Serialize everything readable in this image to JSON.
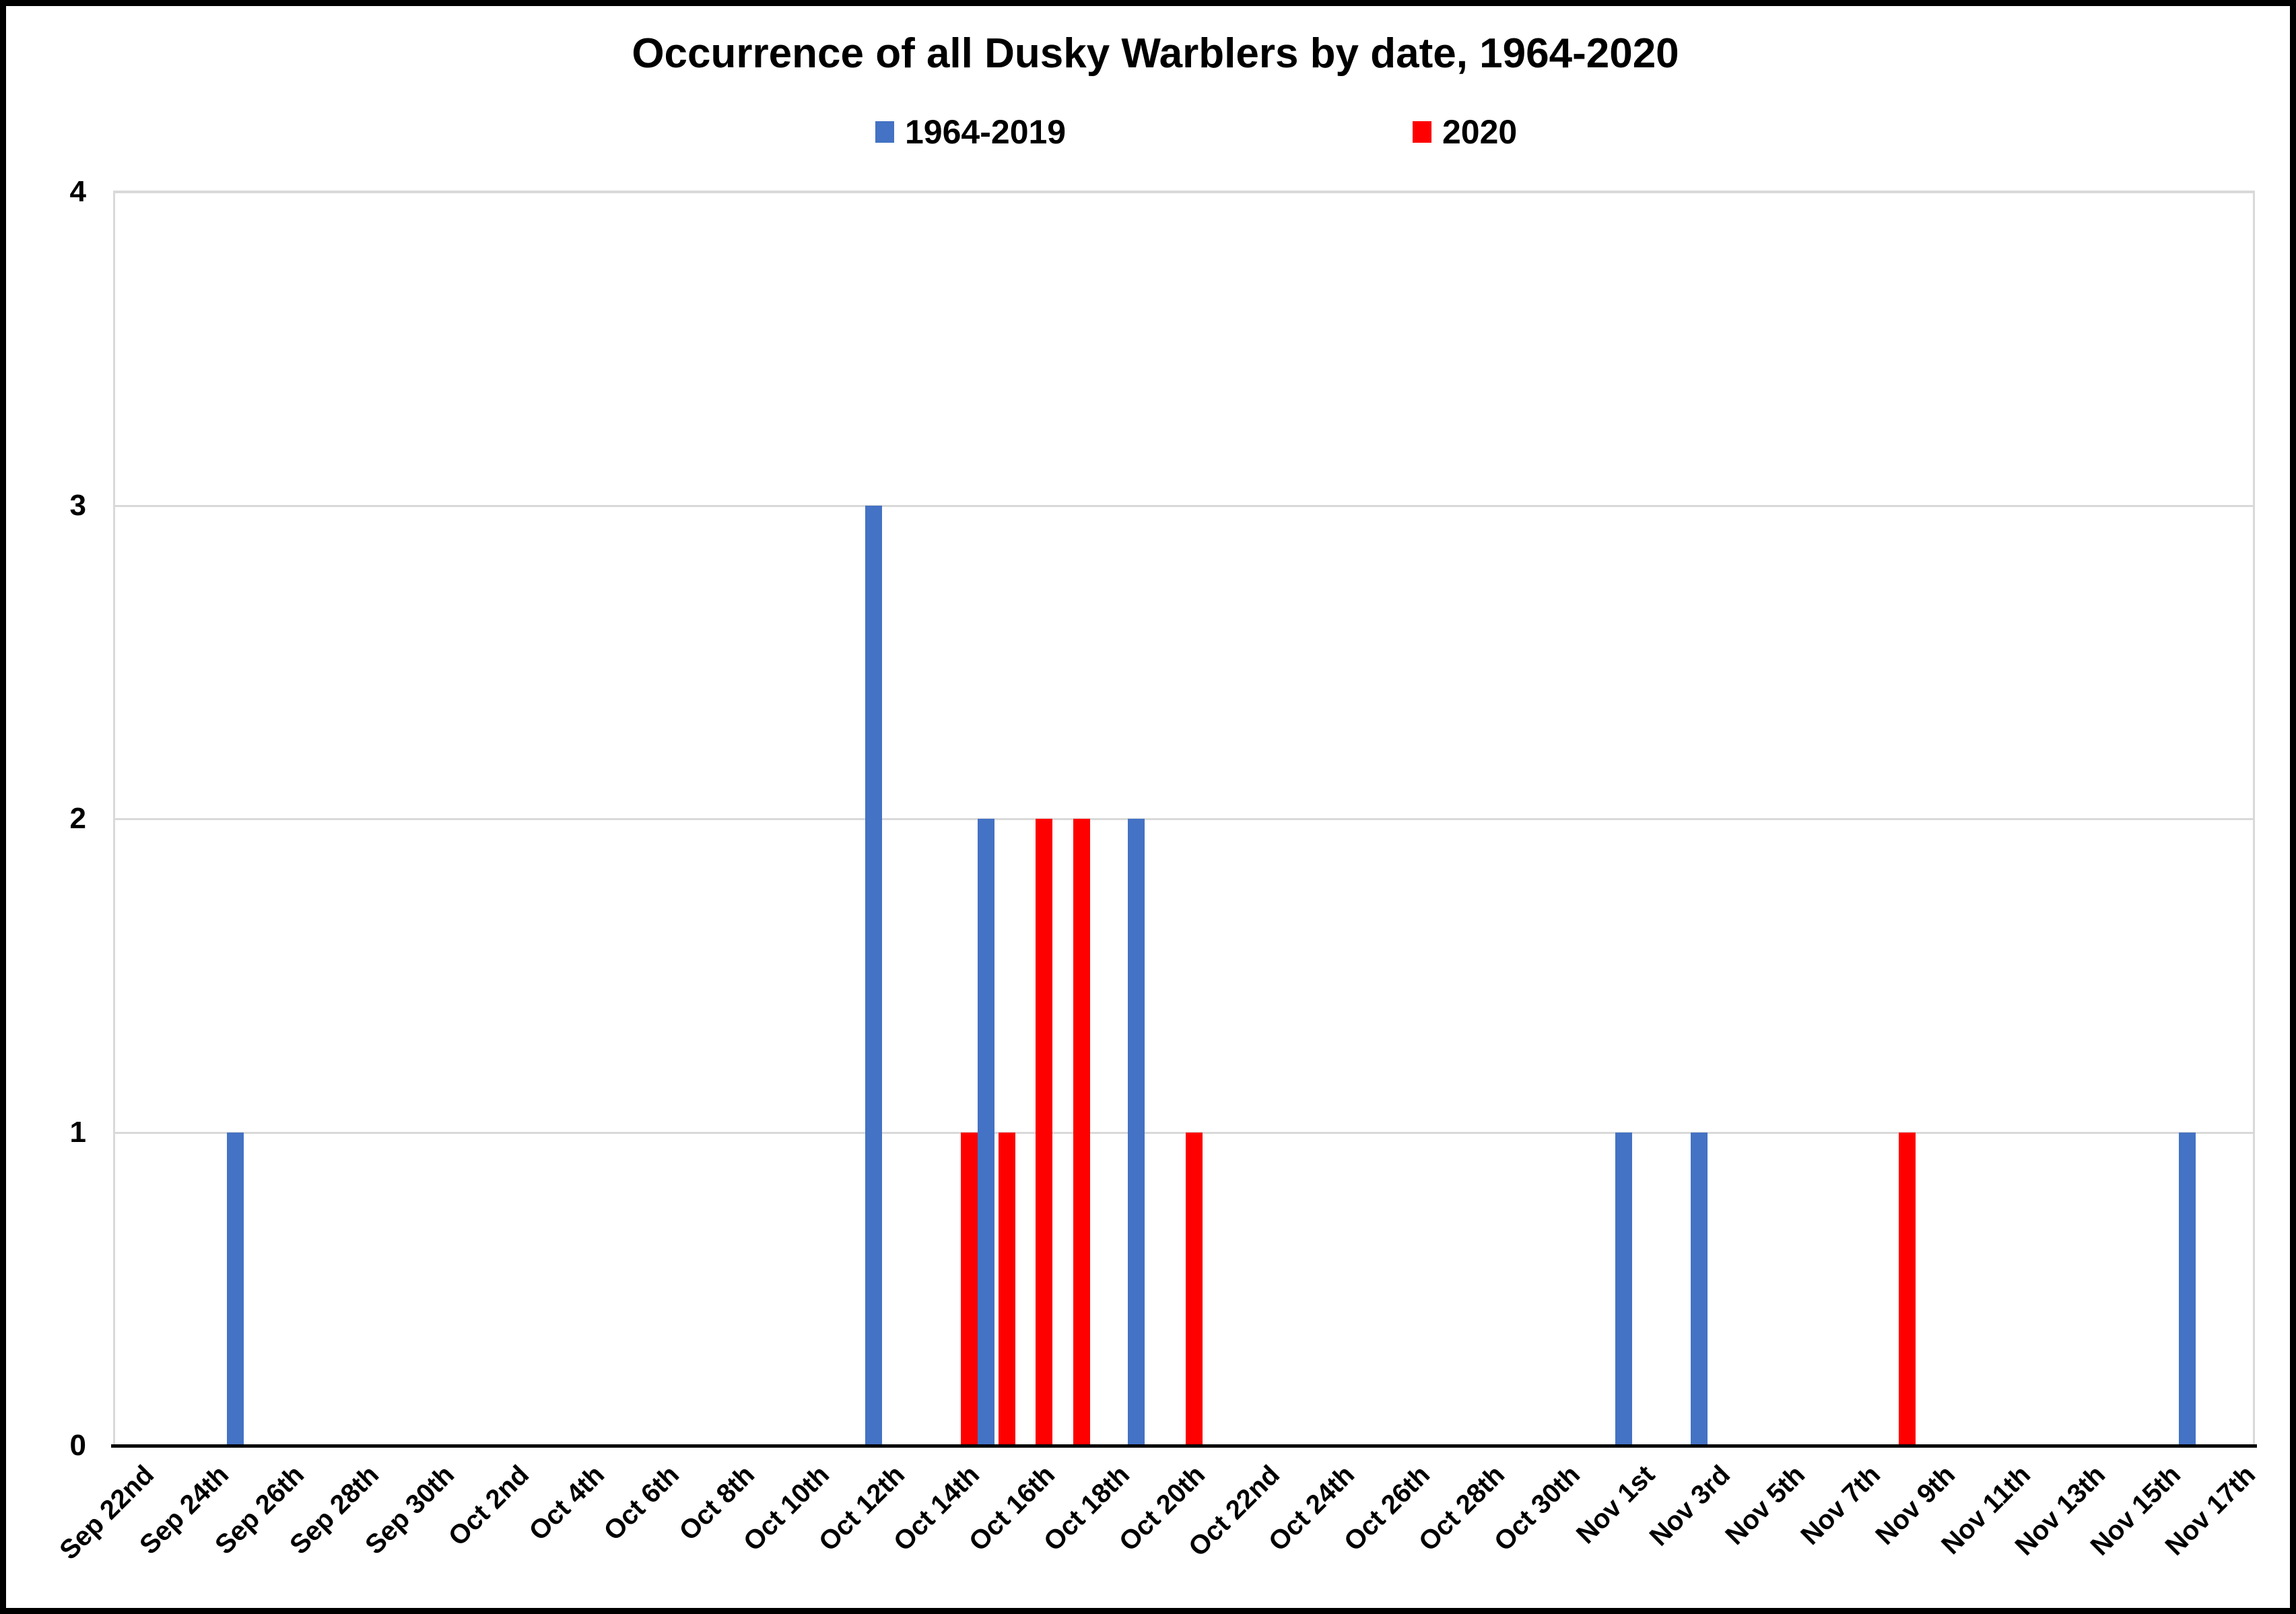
{
  "chart_data": {
    "type": "bar",
    "title": "Occurrence of all Dusky Warblers by date, 1964-2020",
    "ylabel": "",
    "xlabel": "",
    "ylim": [
      0,
      4
    ],
    "y_ticks": [
      0,
      1,
      2,
      3,
      4
    ],
    "grid": "horizontal",
    "legend_position": "top",
    "x_axis": {
      "start_date": "Sep 22nd",
      "end_date": "Nov 17th",
      "total_day_slots": 57,
      "labels_every_n_days": 2
    },
    "tick_labels": [
      "Sep 22nd",
      "Sep 24th",
      "Sep 26th",
      "Sep 28th",
      "Sep 30th",
      "Oct 2nd",
      "Oct 4th",
      "Oct 6th",
      "Oct 8th",
      "Oct 10th",
      "Oct 12th",
      "Oct 14th",
      "Oct 16th",
      "Oct 18th",
      "Oct 20th",
      "Oct 22nd",
      "Oct 24th",
      "Oct 26th",
      "Oct 28th",
      "Oct 30th",
      "Nov 1st",
      "Nov 3rd",
      "Nov 5th",
      "Nov 7th",
      "Nov 9th",
      "Nov 11th",
      "Nov 13th",
      "Nov 15th",
      "Nov 17th"
    ],
    "series": [
      {
        "name": "1964-2019",
        "color": "#4472C4",
        "points": [
          {
            "date": "Sep 25th",
            "day_index": 3,
            "value": 1
          },
          {
            "date": "Oct 12th",
            "day_index": 20,
            "value": 3
          },
          {
            "date": "Oct 15th",
            "day_index": 23,
            "value": 2
          },
          {
            "date": "Oct 19th",
            "day_index": 27,
            "value": 2
          },
          {
            "date": "Nov 1st",
            "day_index": 40,
            "value": 1
          },
          {
            "date": "Nov 3rd",
            "day_index": 42,
            "value": 1
          },
          {
            "date": "Nov 16th",
            "day_index": 55,
            "value": 1
          }
        ]
      },
      {
        "name": "2020",
        "color": "#FF0000",
        "points": [
          {
            "date": "Oct 14th",
            "day_index": 22,
            "value": 1
          },
          {
            "date": "Oct 15th",
            "day_index": 23,
            "value": 1
          },
          {
            "date": "Oct 16th",
            "day_index": 24,
            "value": 2
          },
          {
            "date": "Oct 17th",
            "day_index": 25,
            "value": 2
          },
          {
            "date": "Oct 20th",
            "day_index": 28,
            "value": 1
          },
          {
            "date": "Nov 8th",
            "day_index": 47,
            "value": 1
          }
        ]
      }
    ],
    "colors": {
      "gridline": "#d9d9d9",
      "axis_line": "#000000",
      "background": "#ffffff",
      "frame_border": "#000000"
    }
  }
}
